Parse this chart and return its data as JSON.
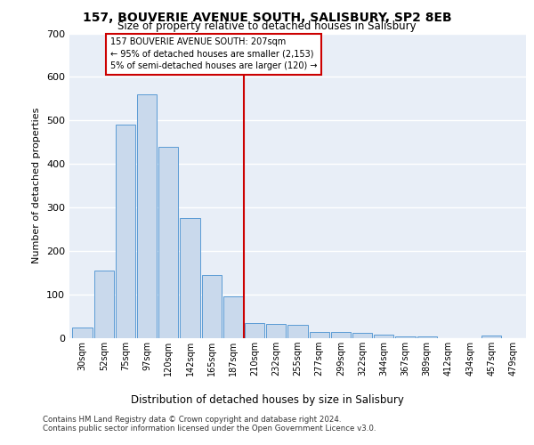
{
  "title_line1": "157, BOUVERIE AVENUE SOUTH, SALISBURY, SP2 8EB",
  "title_line2": "Size of property relative to detached houses in Salisbury",
  "xlabel": "Distribution of detached houses by size in Salisbury",
  "ylabel": "Number of detached properties",
  "categories": [
    "30sqm",
    "52sqm",
    "75sqm",
    "97sqm",
    "120sqm",
    "142sqm",
    "165sqm",
    "187sqm",
    "210sqm",
    "232sqm",
    "255sqm",
    "277sqm",
    "299sqm",
    "322sqm",
    "344sqm",
    "367sqm",
    "389sqm",
    "412sqm",
    "434sqm",
    "457sqm",
    "479sqm"
  ],
  "values": [
    25,
    155,
    490,
    560,
    440,
    275,
    145,
    97,
    35,
    32,
    30,
    15,
    15,
    12,
    8,
    5,
    5,
    0,
    0,
    7,
    0
  ],
  "bar_color": "#c9d9ec",
  "bar_edge_color": "#5b9bd5",
  "background_color": "#e8eef7",
  "grid_color": "#ffffff",
  "annotation_text": "157 BOUVERIE AVENUE SOUTH: 207sqm\n← 95% of detached houses are smaller (2,153)\n5% of semi-detached houses are larger (120) →",
  "vline_x": 7.5,
  "vline_color": "#cc0000",
  "annotation_box_color": "#cc0000",
  "ylim": [
    0,
    700
  ],
  "yticks": [
    0,
    100,
    200,
    300,
    400,
    500,
    600,
    700
  ],
  "footer_line1": "Contains HM Land Registry data © Crown copyright and database right 2024.",
  "footer_line2": "Contains public sector information licensed under the Open Government Licence v3.0."
}
